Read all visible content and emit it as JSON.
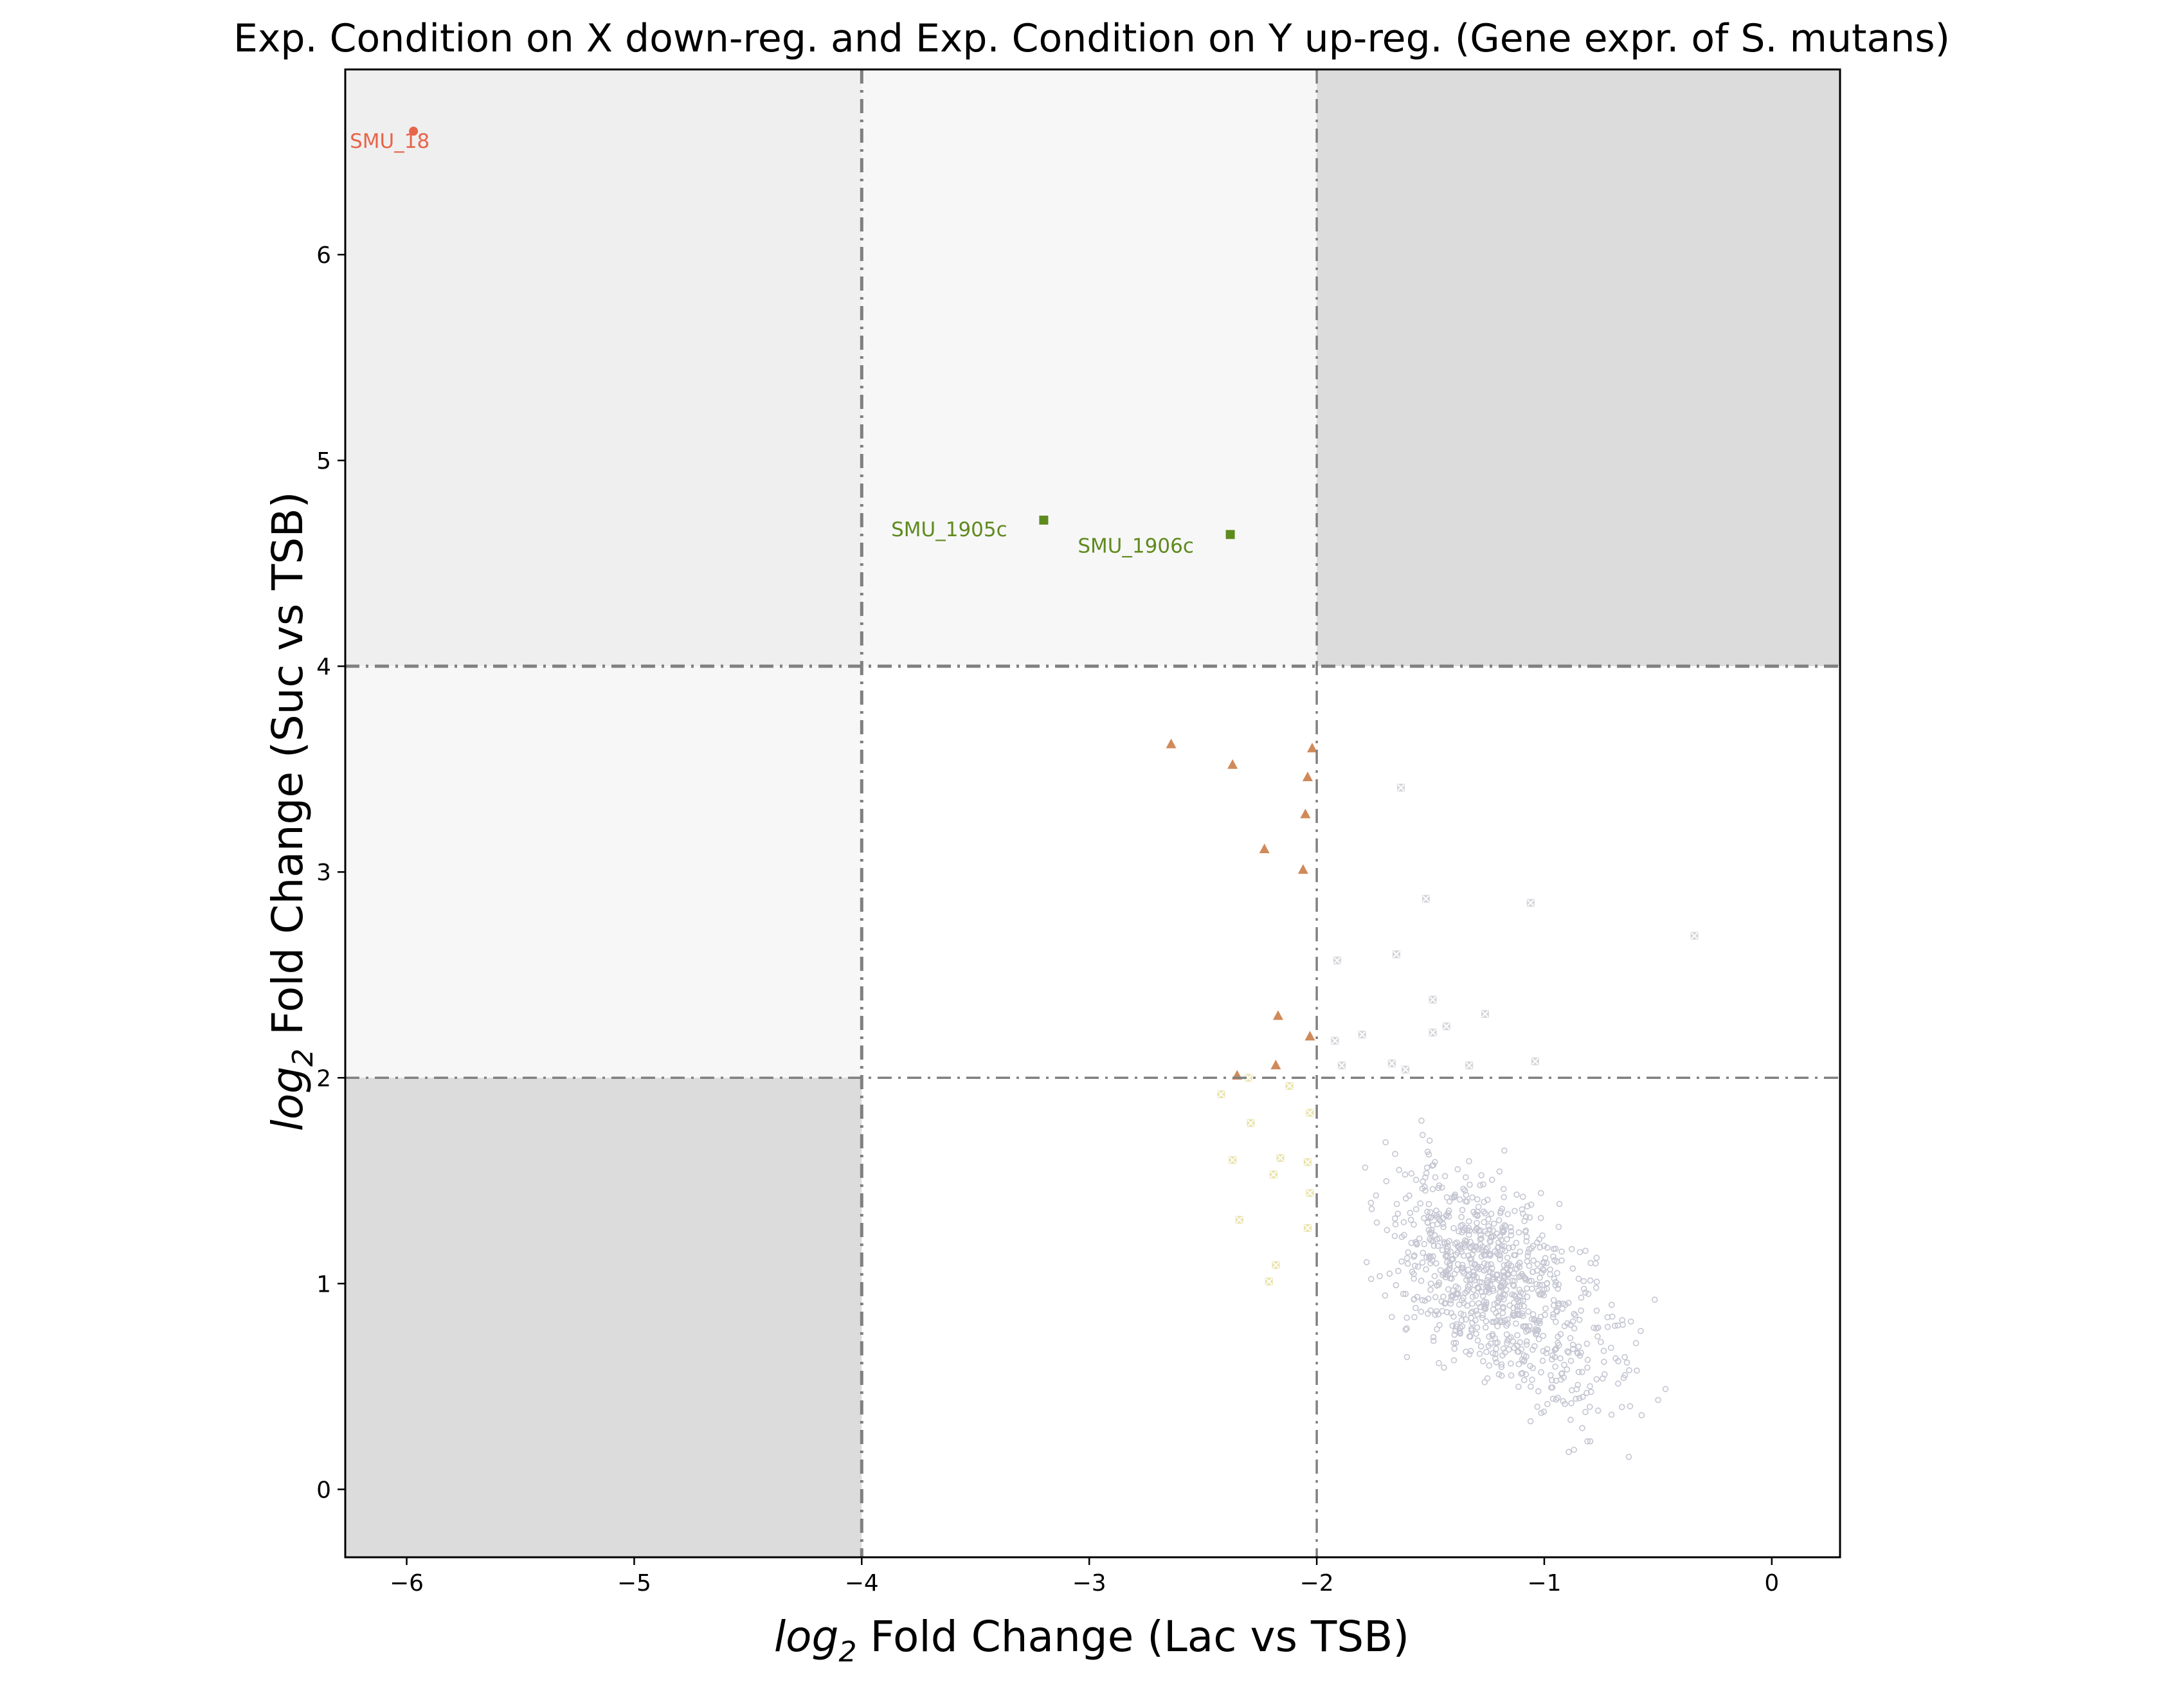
{
  "chart_data": {
    "type": "scatter",
    "title": "Exp. Condition on X down-reg. and Exp. Condition on Y up-reg. (Gene expr. of S. mutans)",
    "xlabel": {
      "prefix": "log",
      "sub": "2",
      "rest": " Fold Change (Lac vs TSB)"
    },
    "ylabel": {
      "prefix": "log",
      "sub": "2",
      "rest": " Fold Change (Suc vs TSB)"
    },
    "xlim": [
      -6.27,
      0.3
    ],
    "ylim": [
      -0.33,
      6.9
    ],
    "x_ticks": [
      -6,
      -5,
      -4,
      -3,
      -2,
      -1,
      0
    ],
    "x_tick_labels": [
      "−6",
      "−5",
      "−4",
      "−3",
      "−2",
      "−1",
      "0"
    ],
    "y_ticks": [
      0,
      1,
      2,
      3,
      4,
      5,
      6
    ],
    "y_tick_labels": [
      "0",
      "1",
      "2",
      "3",
      "4",
      "5",
      "6"
    ],
    "grid": false,
    "legend": "none",
    "thresholds": {
      "x": [
        -4,
        -2
      ],
      "y": [
        2,
        4
      ]
    },
    "shaded_regions": [
      {
        "x": [
          -6.27,
          -4
        ],
        "y": [
          4,
          6.9
        ],
        "color": "#efefef"
      },
      {
        "x": [
          -4,
          -2
        ],
        "y": [
          4,
          6.9
        ],
        "color": "#f7f7f7"
      },
      {
        "x": [
          -2,
          0.3
        ],
        "y": [
          4,
          6.9
        ],
        "color": "#dcdcdc"
      },
      {
        "x": [
          -6.27,
          -4
        ],
        "y": [
          2,
          4
        ],
        "color": "#f7f7f7"
      },
      {
        "x": [
          -6.27,
          -4
        ],
        "y": [
          -0.33,
          2
        ],
        "color": "#dcdcdc"
      }
    ],
    "series": [
      {
        "marker": "circle",
        "color": "#e8644a",
        "points": [
          [
            -5.97,
            6.6
          ]
        ]
      },
      {
        "marker": "square",
        "color": "#5f8a1e",
        "points": [
          [
            -3.2,
            4.71
          ],
          [
            -2.38,
            4.64
          ]
        ]
      },
      {
        "marker": "triangle",
        "color": "#d08a5a",
        "points": [
          [
            -2.64,
            3.62
          ],
          [
            -2.37,
            3.52
          ],
          [
            -2.02,
            3.6
          ],
          [
            -2.04,
            3.46
          ],
          [
            -2.05,
            3.28
          ],
          [
            -2.23,
            3.11
          ],
          [
            -2.06,
            3.01
          ],
          [
            -2.17,
            2.3
          ],
          [
            -2.03,
            2.2
          ],
          [
            -2.18,
            2.06
          ],
          [
            -2.35,
            2.01
          ]
        ]
      },
      {
        "marker": "x-square",
        "color": "#d8cc6a",
        "points": [
          [
            -2.42,
            1.92
          ],
          [
            -2.12,
            1.96
          ],
          [
            -2.29,
            1.78
          ],
          [
            -2.03,
            1.83
          ],
          [
            -2.37,
            1.6
          ],
          [
            -2.16,
            1.61
          ],
          [
            -2.04,
            1.59
          ],
          [
            -2.19,
            1.53
          ],
          [
            -2.03,
            1.44
          ],
          [
            -2.34,
            1.31
          ],
          [
            -2.04,
            1.27
          ],
          [
            -2.18,
            1.09
          ],
          [
            -2.21,
            1.01
          ],
          [
            -2.3,
            2.0
          ]
        ]
      },
      {
        "marker": "x-square",
        "color": "#b2b2bd",
        "points": [
          [
            -1.63,
            3.41
          ],
          [
            -1.52,
            2.87
          ],
          [
            -1.06,
            2.85
          ],
          [
            -0.34,
            2.69
          ],
          [
            -1.91,
            2.57
          ],
          [
            -1.65,
            2.6
          ],
          [
            -1.49,
            2.38
          ],
          [
            -1.26,
            2.31
          ],
          [
            -1.43,
            2.25
          ],
          [
            -1.49,
            2.22
          ],
          [
            -1.92,
            2.18
          ],
          [
            -1.8,
            2.21
          ],
          [
            -1.89,
            2.06
          ],
          [
            -1.67,
            2.07
          ],
          [
            -1.61,
            2.04
          ],
          [
            -1.33,
            2.06
          ],
          [
            -1.04,
            2.08
          ]
        ]
      }
    ],
    "background_cloud": {
      "marker": "dot",
      "color": "#c4c6d2",
      "count": 900,
      "x_range": [
        -1.95,
        -0.02
      ],
      "y_range": [
        0.0,
        1.95
      ]
    },
    "annotations": [
      {
        "text": "SMU_18",
        "x": -5.97,
        "y": 6.6,
        "color": "#e8644a"
      },
      {
        "text": "SMU_1905c",
        "x": -3.2,
        "y": 4.71,
        "color": "#5f8a1e"
      },
      {
        "text": "SMU_1906c",
        "x": -2.38,
        "y": 4.64,
        "color": "#5f8a1e"
      }
    ]
  }
}
